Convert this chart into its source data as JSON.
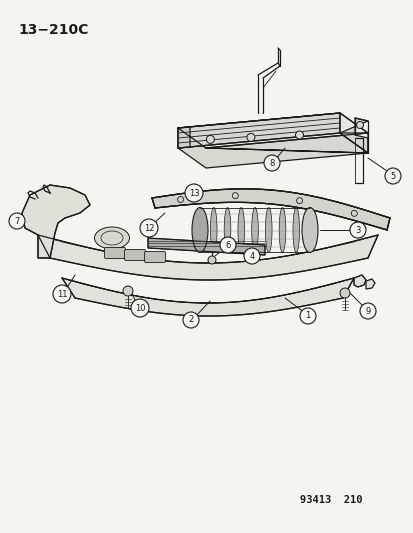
{
  "title_top_left": "13−210C",
  "bottom_right_text": "93413  210",
  "background_color": "#f5f5f0",
  "line_color": "#1a1a1a",
  "figsize": [
    4.14,
    5.33
  ],
  "dpi": 100,
  "beam_color": "#d8d8d0",
  "fascia_color": "#e0e0d8",
  "isolator_color": "#c0c0b8"
}
